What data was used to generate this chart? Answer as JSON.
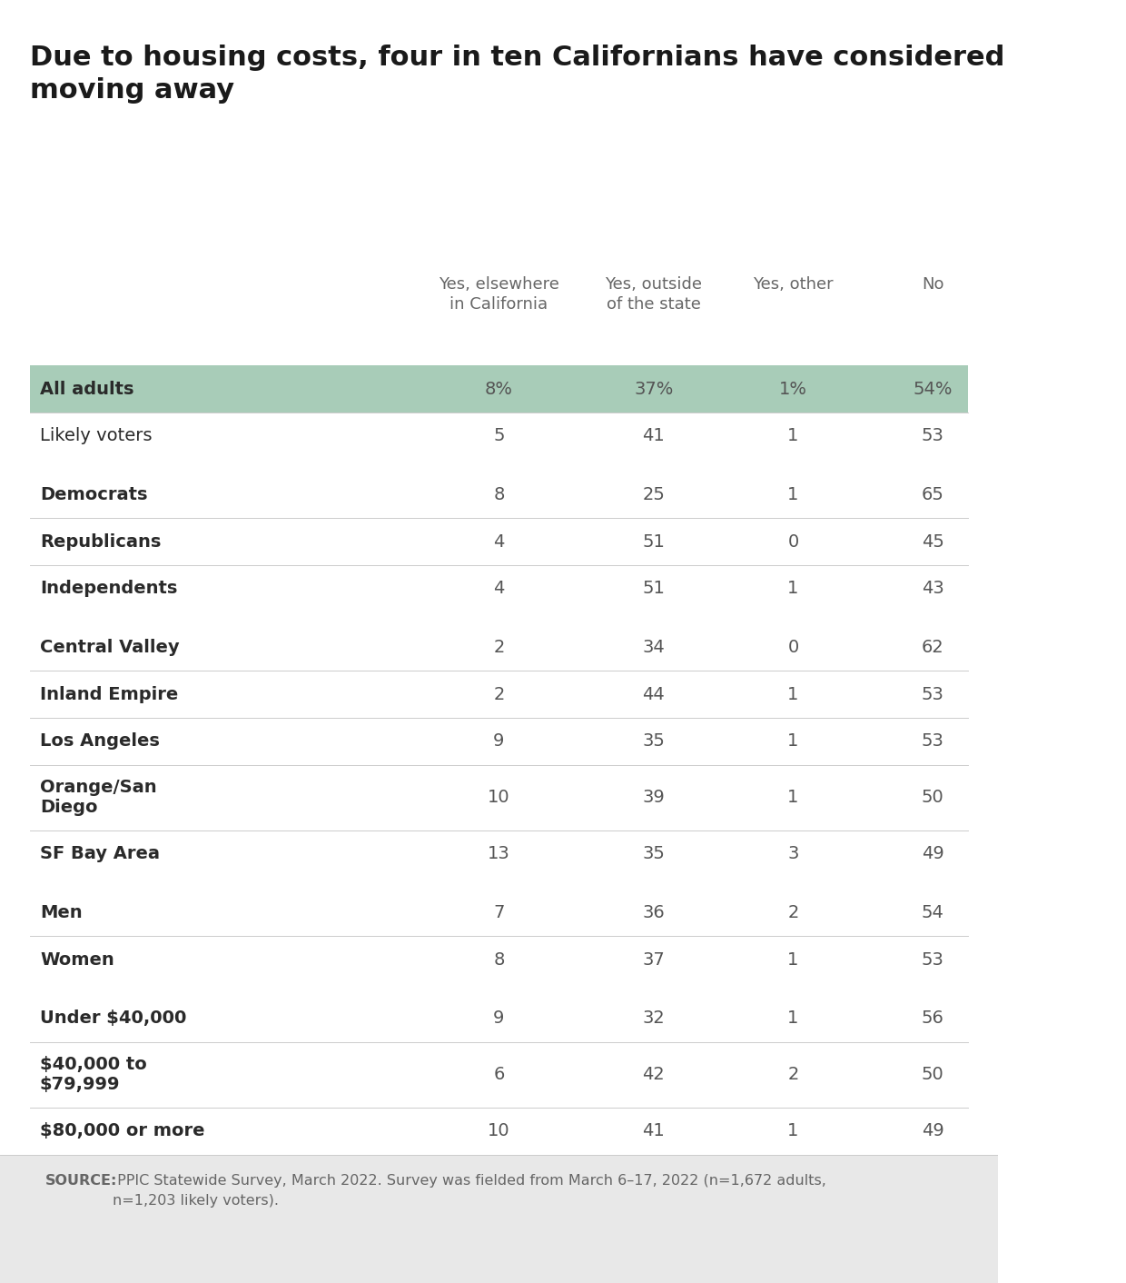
{
  "title": "Due to housing costs, four in ten Californians have considered\nmoving away",
  "col_headers": [
    "Yes, elsewhere\nin California",
    "Yes, outside\nof the state",
    "Yes, other",
    "No"
  ],
  "rows": [
    {
      "label": "All adults",
      "values": [
        "8%",
        "37%",
        "1%",
        "54%"
      ],
      "bold_label": true,
      "highlight": true
    },
    {
      "label": "Likely voters",
      "values": [
        "5",
        "41",
        "1",
        "53"
      ],
      "bold_label": false,
      "highlight": false
    },
    {
      "label": "",
      "values": [
        "",
        "",
        "",
        ""
      ],
      "bold_label": false,
      "highlight": false,
      "spacer": true
    },
    {
      "label": "Democrats",
      "values": [
        "8",
        "25",
        "1",
        "65"
      ],
      "bold_label": true,
      "highlight": false
    },
    {
      "label": "Republicans",
      "values": [
        "4",
        "51",
        "0",
        "45"
      ],
      "bold_label": true,
      "highlight": false
    },
    {
      "label": "Independents",
      "values": [
        "4",
        "51",
        "1",
        "43"
      ],
      "bold_label": true,
      "highlight": false
    },
    {
      "label": "",
      "values": [
        "",
        "",
        "",
        ""
      ],
      "bold_label": false,
      "highlight": false,
      "spacer": true
    },
    {
      "label": "Central Valley",
      "values": [
        "2",
        "34",
        "0",
        "62"
      ],
      "bold_label": true,
      "highlight": false
    },
    {
      "label": "Inland Empire",
      "values": [
        "2",
        "44",
        "1",
        "53"
      ],
      "bold_label": true,
      "highlight": false
    },
    {
      "label": "Los Angeles",
      "values": [
        "9",
        "35",
        "1",
        "53"
      ],
      "bold_label": true,
      "highlight": false
    },
    {
      "label": "Orange/San\nDiego",
      "values": [
        "10",
        "39",
        "1",
        "50"
      ],
      "bold_label": true,
      "highlight": false
    },
    {
      "label": "SF Bay Area",
      "values": [
        "13",
        "35",
        "3",
        "49"
      ],
      "bold_label": true,
      "highlight": false
    },
    {
      "label": "",
      "values": [
        "",
        "",
        "",
        ""
      ],
      "bold_label": false,
      "highlight": false,
      "spacer": true
    },
    {
      "label": "Men",
      "values": [
        "7",
        "36",
        "2",
        "54"
      ],
      "bold_label": true,
      "highlight": false
    },
    {
      "label": "Women",
      "values": [
        "8",
        "37",
        "1",
        "53"
      ],
      "bold_label": true,
      "highlight": false
    },
    {
      "label": "",
      "values": [
        "",
        "",
        "",
        ""
      ],
      "bold_label": false,
      "highlight": false,
      "spacer": true
    },
    {
      "label": "Under $40,000",
      "values": [
        "9",
        "32",
        "1",
        "56"
      ],
      "bold_label": true,
      "highlight": false
    },
    {
      "label": "$40,000 to\n$79,999",
      "values": [
        "6",
        "42",
        "2",
        "50"
      ],
      "bold_label": true,
      "highlight": false
    },
    {
      "label": "$80,000 or more",
      "values": [
        "10",
        "41",
        "1",
        "49"
      ],
      "bold_label": true,
      "highlight": false
    }
  ],
  "source_bold": "SOURCE:",
  "source_rest": " PPIC Statewide Survey, March 2022. Survey was fielded from March 6–17, 2022 (n=1,672 adults,\nn=1,203 likely voters).",
  "highlight_color": "#a8ccb8",
  "background_color": "#ffffff",
  "footer_bg_color": "#e8e8e8",
  "divider_color": "#cccccc",
  "title_color": "#1a1a1a",
  "label_color": "#333333",
  "value_color": "#555555",
  "header_color": "#666666"
}
